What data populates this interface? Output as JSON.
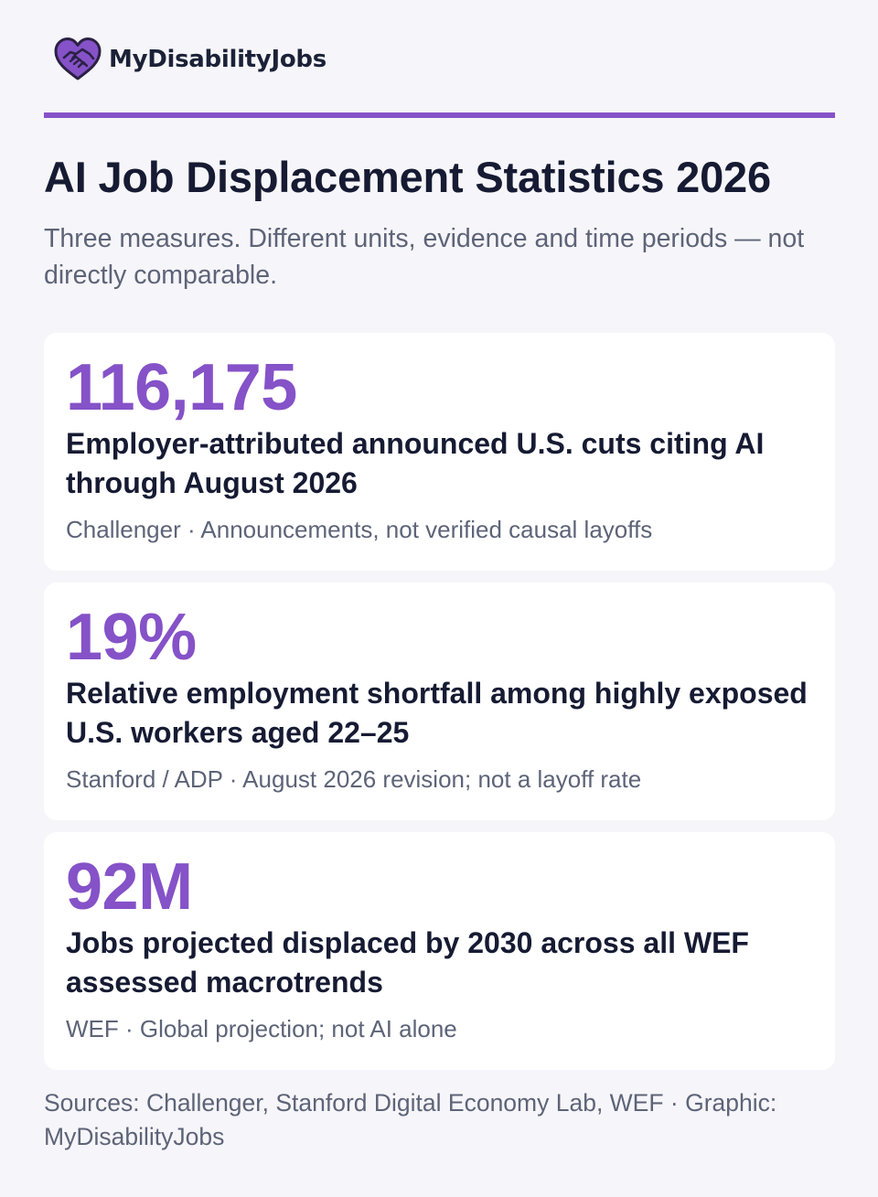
{
  "brand": {
    "name": "MyDisabilityJobs",
    "accent_color": "#8552c8",
    "logo_icon": "heart-handshake-icon"
  },
  "header": {
    "title": "AI Job Displacement Statistics 2026",
    "subtitle": "Three measures. Different units, evidence and time periods — not directly comparable."
  },
  "stats": [
    {
      "value": "116,175",
      "description": "Employer-attributed announced U.S. cuts citing AI through August 2026",
      "note": "Challenger · Announcements, not verified causal layoffs"
    },
    {
      "value": "19%",
      "description": "Relative employment shortfall among highly exposed U.S. workers aged 22–25",
      "note": "Stanford / ADP · August 2026 revision; not a layoff rate"
    },
    {
      "value": "92M",
      "description": "Jobs projected displaced by 2030 across all WEF assessed macrotrends",
      "note": "WEF · Global projection; not AI alone"
    }
  ],
  "footer": {
    "sources": "Sources: Challenger, Stanford Digital Economy Lab, WEF · Graphic: MyDisabilityJobs"
  }
}
